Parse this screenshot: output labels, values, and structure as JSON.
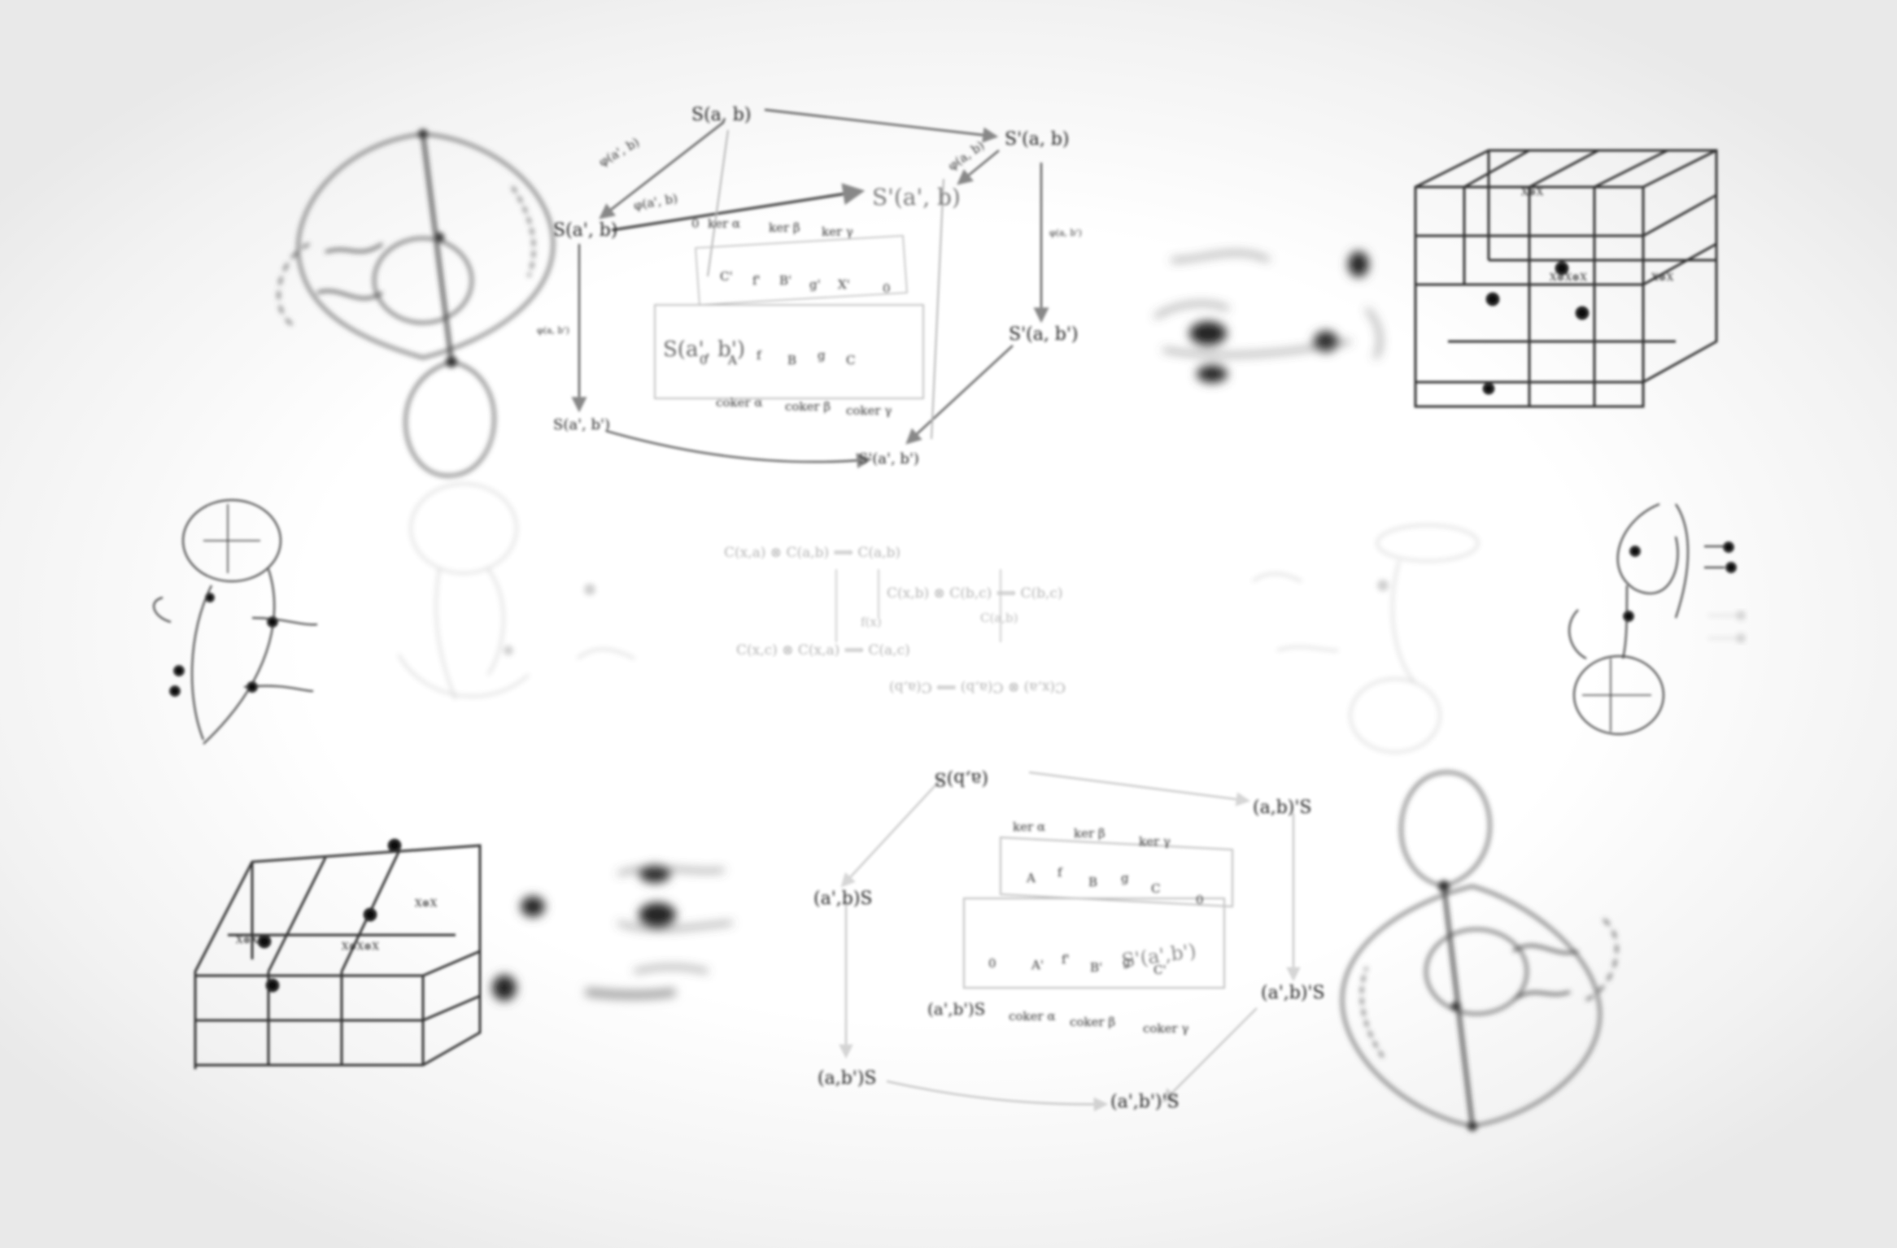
{
  "background_color": "#ffffff",
  "vignette_color": "#e9e9e9",
  "top_cube": {
    "vertices": {
      "s_ab": "S(a, b)",
      "sp_ab": "S'(a, b)",
      "s_apb": "S(a', b)",
      "sp_apb": "S'(a', b)",
      "s_abp": "S(a', b')",
      "sp_abp_right": "S'(a, b')",
      "s_apbp": "S(a', b')",
      "sp_apbp": "S'(a', b')"
    },
    "edges": {
      "phi_apb_top": "φ(a', b)",
      "phi_apb_mid": "φ(a', b)",
      "phi_ab_right": "φ(a, b)",
      "phi_apbp_left": "φ(a, b')",
      "phi_ab_side": "φ(a, b')"
    },
    "inner_rows": {
      "row1": [
        "0",
        "ker α",
        "ker β",
        "ker γ"
      ],
      "row2": [
        "C'",
        "f'",
        "B'",
        "g'",
        "X'",
        "0"
      ],
      "row3": [
        "0",
        "A",
        "f",
        "B",
        "g",
        "C"
      ],
      "row4": [
        "coker α",
        "coker β",
        "coker γ"
      ]
    }
  },
  "bottom_cube": {
    "vertices": {
      "s_ab": "(a,b)S",
      "sp_ab": "(a,b)'S",
      "s_apb": "(a',b)S",
      "sp_apb": "(a',b)'S",
      "s_bp": "(a,b')S",
      "sp_bp": "(a',b')'S",
      "s_apbp": "(a',b')S",
      "sp_apbp": "S'(a',b')"
    },
    "inner_rows": {
      "row1": [
        "ker α",
        "ker β",
        "ker γ"
      ],
      "row2": [
        "A",
        "f",
        "B",
        "g",
        "C",
        "0"
      ],
      "row3": [
        "0",
        "A'",
        "f'",
        "B'",
        "g'",
        "C'"
      ],
      "row4": [
        "coker α",
        "coker β",
        "coker γ"
      ]
    }
  },
  "center_equations": {
    "row1": "C(x,a) ⊗ C(a,b) ⟹ C(a,b)",
    "row2": "C(x,b) ⊗ C(b,c) ⟹ C(b,c)",
    "row3": "C(x,c) ⊗ C(x,a) ⟹ C(a,c)",
    "mid_left": "f(x)",
    "mid_right": "C(a,b)"
  },
  "lattice_labels": {
    "node": "X⊗X",
    "node2": "X⊗X⊗X"
  },
  "colors": {
    "ink": "#1e1e1e",
    "faint_ink": "#9a9a9a"
  }
}
